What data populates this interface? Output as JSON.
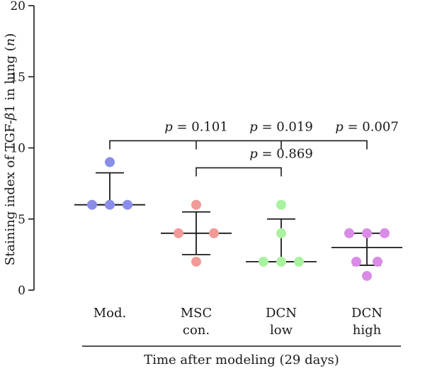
{
  "chart_data": {
    "type": "scatter",
    "subtype": "dot-plot-with-median-and-iqr",
    "ylabel": "Staining index of TGF-β1 in lung (n)",
    "xlabel": "Time after modeling (29 days)",
    "ylim": [
      0,
      20
    ],
    "yticks": [
      0,
      5,
      10,
      15,
      20
    ],
    "grid": false,
    "legend": "none",
    "categories": [
      {
        "lines": [
          "Mod."
        ]
      },
      {
        "lines": [
          "MSC",
          "con."
        ]
      },
      {
        "lines": [
          "DCN",
          "low"
        ]
      },
      {
        "lines": [
          "DCN",
          "high"
        ]
      }
    ],
    "series": [
      {
        "category": "Mod.",
        "color": "#8a8ee8",
        "points": [
          {
            "y": 9,
            "jitter": 0
          },
          {
            "y": 6,
            "jitter": -1
          },
          {
            "y": 6,
            "jitter": 0
          },
          {
            "y": 6,
            "jitter": 1
          }
        ],
        "median": 6,
        "upper": 8.25,
        "lower": 6
      },
      {
        "category": "MSC con.",
        "color": "#f29a98",
        "points": [
          {
            "y": 6,
            "jitter": 0
          },
          {
            "y": 4,
            "jitter": -1
          },
          {
            "y": 4,
            "jitter": 1
          },
          {
            "y": 2,
            "jitter": 0
          }
        ],
        "median": 4,
        "upper": 5.5,
        "lower": 2.5
      },
      {
        "category": "DCN low",
        "color": "#a8f2a0",
        "points": [
          {
            "y": 6,
            "jitter": 0
          },
          {
            "y": 4,
            "jitter": 0
          },
          {
            "y": 2,
            "jitter": -1
          },
          {
            "y": 2,
            "jitter": 0
          },
          {
            "y": 2,
            "jitter": 1
          }
        ],
        "median": 2,
        "upper": 5,
        "lower": 2
      },
      {
        "category": "DCN high",
        "color": "#d98be6",
        "points": [
          {
            "y": 4,
            "jitter": -1
          },
          {
            "y": 4,
            "jitter": 0
          },
          {
            "y": 4,
            "jitter": 1
          },
          {
            "y": 2,
            "jitter": -0.6
          },
          {
            "y": 2,
            "jitter": 0.6
          },
          {
            "y": 1,
            "jitter": 0
          }
        ],
        "median": 3,
        "upper": 4,
        "lower": 1.75
      }
    ],
    "comparisons": [
      {
        "from": 0,
        "to": 3,
        "y": 10.5,
        "ticks_to": [
          1,
          2,
          3
        ],
        "labels": [
          {
            "at": 1,
            "text": "p = 0.101"
          },
          {
            "at": 2,
            "text": "p = 0.019"
          },
          {
            "at": 3,
            "text": "p = 0.007"
          }
        ]
      },
      {
        "from": 1,
        "to": 2,
        "y": 8.6,
        "ticks_to": [
          1,
          2
        ],
        "labels": [
          {
            "at": 2,
            "text": "p = 0.869"
          }
        ]
      }
    ]
  }
}
